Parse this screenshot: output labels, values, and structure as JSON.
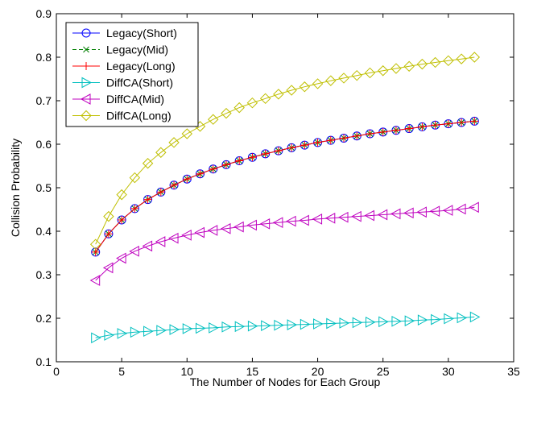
{
  "chart_data": {
    "type": "line",
    "xlabel": "The Number of Nodes for Each Group",
    "ylabel": "Collision Probability",
    "xlim": [
      0,
      35
    ],
    "ylim": [
      0.1,
      0.9
    ],
    "xticks": [
      0,
      5,
      10,
      15,
      20,
      25,
      30,
      35
    ],
    "yticks": [
      0.1,
      0.2,
      0.3,
      0.4,
      0.5,
      0.6,
      0.7,
      0.8,
      0.9
    ],
    "xtick_labels": [
      "0",
      "5",
      "10",
      "15",
      "20",
      "25",
      "30",
      "35"
    ],
    "ytick_labels": [
      "0.1",
      "0.2",
      "0.3",
      "0.4",
      "0.5",
      "0.6",
      "0.7",
      "0.8",
      "0.9"
    ],
    "grid": false,
    "legend_position": "top-left",
    "x": [
      3,
      4,
      5,
      6,
      7,
      8,
      9,
      10,
      11,
      12,
      13,
      14,
      15,
      16,
      17,
      18,
      19,
      20,
      21,
      22,
      23,
      24,
      25,
      26,
      27,
      28,
      29,
      30,
      31,
      32
    ],
    "series": [
      {
        "name": "Legacy(Short)",
        "color": "#0000ff",
        "marker": "circle",
        "line": "solid",
        "values": [
          0.352,
          0.394,
          0.426,
          0.452,
          0.473,
          0.49,
          0.506,
          0.52,
          0.532,
          0.543,
          0.553,
          0.562,
          0.57,
          0.578,
          0.585,
          0.592,
          0.598,
          0.604,
          0.609,
          0.614,
          0.619,
          0.624,
          0.628,
          0.632,
          0.636,
          0.64,
          0.644,
          0.647,
          0.65,
          0.653
        ]
      },
      {
        "name": "Legacy(Mid)",
        "color": "#007f00",
        "marker": "x",
        "line": "dashed",
        "values": [
          0.352,
          0.394,
          0.426,
          0.452,
          0.473,
          0.49,
          0.506,
          0.52,
          0.532,
          0.543,
          0.553,
          0.562,
          0.57,
          0.578,
          0.585,
          0.592,
          0.598,
          0.604,
          0.609,
          0.614,
          0.619,
          0.624,
          0.628,
          0.632,
          0.636,
          0.64,
          0.644,
          0.647,
          0.65,
          0.653
        ]
      },
      {
        "name": "Legacy(Long)",
        "color": "#ff0000",
        "marker": "plus",
        "line": "solid",
        "values": [
          0.352,
          0.394,
          0.426,
          0.452,
          0.473,
          0.49,
          0.506,
          0.52,
          0.532,
          0.543,
          0.553,
          0.562,
          0.57,
          0.578,
          0.585,
          0.592,
          0.598,
          0.604,
          0.609,
          0.614,
          0.619,
          0.624,
          0.628,
          0.632,
          0.636,
          0.64,
          0.644,
          0.647,
          0.65,
          0.653
        ]
      },
      {
        "name": "DiffCA(Short)",
        "color": "#00bfbf",
        "marker": "triangle-right",
        "line": "solid",
        "values": [
          0.155,
          0.161,
          0.165,
          0.168,
          0.17,
          0.172,
          0.174,
          0.176,
          0.177,
          0.178,
          0.18,
          0.181,
          0.182,
          0.183,
          0.184,
          0.185,
          0.186,
          0.187,
          0.188,
          0.189,
          0.19,
          0.191,
          0.192,
          0.193,
          0.194,
          0.196,
          0.197,
          0.199,
          0.201,
          0.203
        ]
      },
      {
        "name": "DiffCA(Mid)",
        "color": "#bf00bf",
        "marker": "triangle-left",
        "line": "solid",
        "values": [
          0.287,
          0.316,
          0.338,
          0.354,
          0.366,
          0.376,
          0.384,
          0.391,
          0.397,
          0.402,
          0.406,
          0.41,
          0.414,
          0.417,
          0.42,
          0.423,
          0.425,
          0.428,
          0.43,
          0.432,
          0.434,
          0.436,
          0.438,
          0.44,
          0.442,
          0.444,
          0.446,
          0.448,
          0.451,
          0.455
        ]
      },
      {
        "name": "DiffCA(Long)",
        "color": "#bfbf00",
        "marker": "diamond",
        "line": "solid",
        "values": [
          0.37,
          0.434,
          0.484,
          0.523,
          0.556,
          0.581,
          0.604,
          0.624,
          0.641,
          0.657,
          0.671,
          0.684,
          0.695,
          0.705,
          0.715,
          0.724,
          0.732,
          0.739,
          0.746,
          0.752,
          0.758,
          0.764,
          0.769,
          0.774,
          0.779,
          0.784,
          0.788,
          0.792,
          0.796,
          0.8
        ]
      }
    ]
  }
}
